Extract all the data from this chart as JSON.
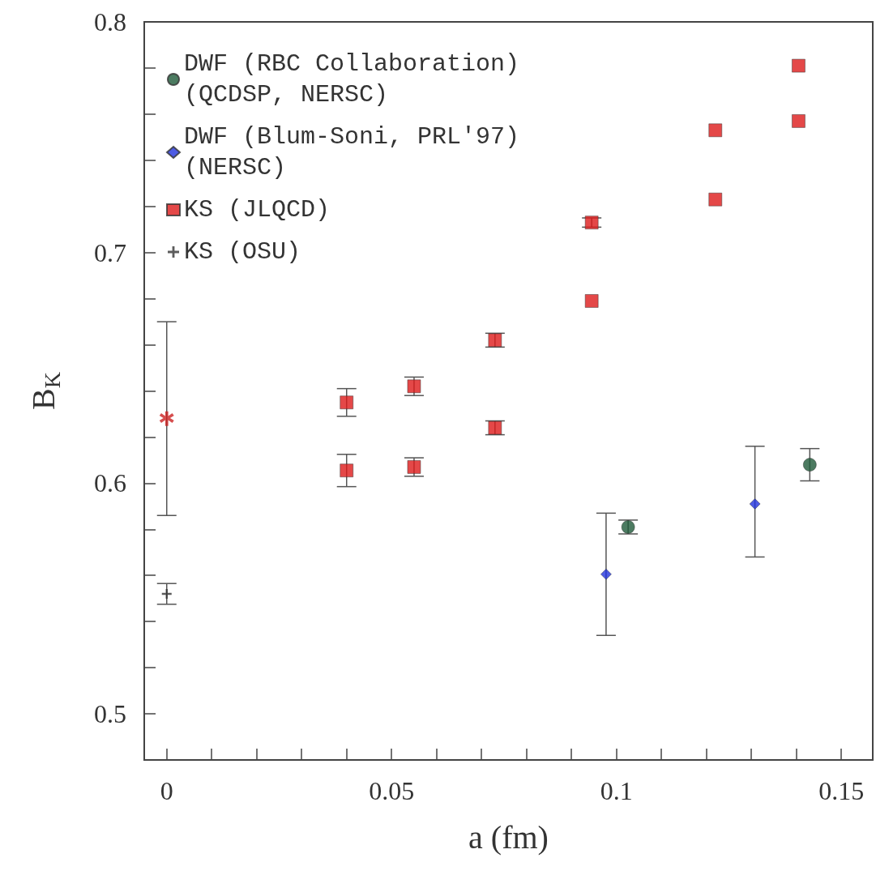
{
  "chart_data": {
    "type": "scatter",
    "xlabel": "a (fm)",
    "ylabel": "B$_{K}$",
    "xlim": [
      -0.005,
      0.157
    ],
    "xticks": [
      0,
      {
        "value": 0.01,
        "label": null
      },
      {
        "value": 0.02,
        "label": null
      },
      {
        "value": 0.03,
        "label": null
      },
      {
        "value": 0.04,
        "label": null
      },
      0.05,
      {
        "value": 0.06,
        "label": null
      },
      {
        "value": 0.07,
        "label": null
      },
      {
        "value": 0.08,
        "label": null
      },
      {
        "value": 0.09,
        "label": null
      },
      0.1,
      {
        "value": 0.11,
        "label": null
      },
      {
        "value": 0.12,
        "label": null
      },
      {
        "value": 0.13,
        "label": null
      },
      {
        "value": 0.14,
        "label": null
      },
      0.15
    ],
    "ylim": [
      0.48,
      0.8
    ],
    "yticks": [
      0.5,
      {
        "value": 0.52,
        "label": null
      },
      {
        "value": 0.54,
        "label": null
      },
      {
        "value": 0.56,
        "label": null
      },
      {
        "value": 0.58,
        "label": null
      },
      0.6,
      {
        "value": 0.62,
        "label": null
      },
      {
        "value": 0.64,
        "label": null
      },
      {
        "value": 0.66,
        "label": null
      },
      {
        "value": 0.68,
        "label": null
      },
      0.7,
      {
        "value": 0.72,
        "label": null
      },
      {
        "value": 0.74,
        "label": null
      },
      {
        "value": 0.76,
        "label": null
      },
      {
        "value": 0.78,
        "label": null
      },
      0.8
    ],
    "grid": false,
    "legend": "top left",
    "series": [
      {
        "name": "DWF (RBC Collaboration)\n(QCDSP, NERSC)",
        "color": "#1f5a3a",
        "marker": "circle",
        "x": [
          0.1026,
          0.143
        ],
        "values": [
          0.581,
          0.608
        ],
        "errors": [
          0.003,
          0.007
        ]
      },
      {
        "name": "DWF (Blum-Soni, PRL'97)\n(NERSC)",
        "color": "#2233dd",
        "marker": "diamond",
        "x": [
          0.0977,
          0.1308
        ],
        "values": [
          0.5605,
          0.591
        ],
        "errors": [
          [
            0.534,
            0.587
          ],
          [
            0.568,
            0.616
          ]
        ]
      },
      {
        "name": "KS (JLQCD)",
        "color": "#dd1a1a",
        "marker": "square",
        "x": [
          0.04,
          0.04,
          0.055,
          0.055,
          0.073,
          0.073,
          0.0945,
          0.0945,
          0.122,
          0.122,
          0.1405,
          0.1405
        ],
        "values": [
          0.635,
          0.6055,
          0.642,
          0.607,
          0.662,
          0.624,
          0.713,
          0.679,
          0.753,
          0.723,
          0.781,
          0.757
        ],
        "errors": [
          0.006,
          0.007,
          0.004,
          0.004,
          0.003,
          0.003,
          0.002,
          null,
          null,
          null,
          null,
          null
        ]
      },
      {
        "name": "KS (OSU)",
        "color": "#333333",
        "marker": "cross",
        "x": [
          0
        ],
        "values": [
          0.552
        ],
        "errors": [
          0.0045
        ]
      },
      {
        "color": "#cc2222",
        "marker": "star",
        "x": [
          0
        ],
        "values": [
          0.628
        ],
        "errors": [
          [
            0.586,
            0.67
          ]
        ]
      }
    ]
  }
}
